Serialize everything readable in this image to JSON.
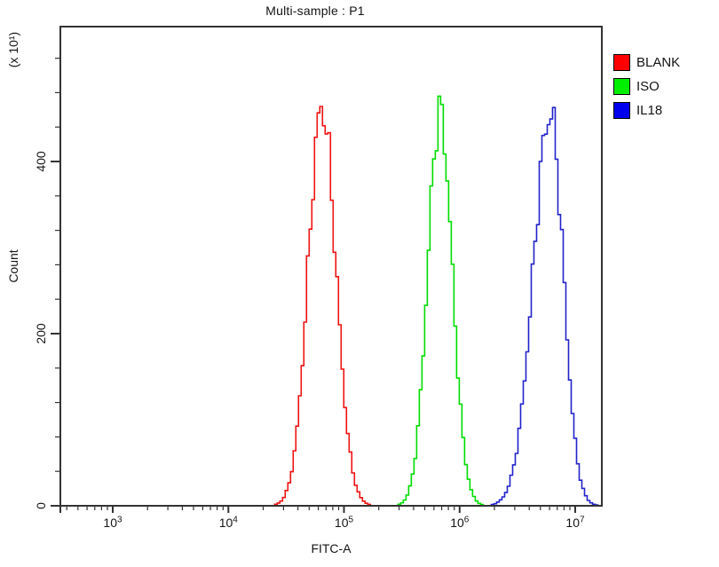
{
  "chart_data": {
    "type": "line",
    "title": "Multi-sample : P1",
    "xlabel": "FITC-A",
    "ylabel": "Count",
    "y_unit_label": "(x 10¹)",
    "x_scale": "log10",
    "x_tick_exponents": [
      3,
      4,
      5,
      6,
      7
    ],
    "x_range_log10": [
      2.55,
      7.23
    ],
    "y_ticks": [
      0,
      200,
      400
    ],
    "y_minor_step": 40,
    "ylim": [
      0,
      557
    ],
    "grid": false,
    "legend_position": "top-right",
    "axis_color": "#333333",
    "series": [
      {
        "name": "BLANK",
        "color": "#ee1111",
        "legend_color": "#ff0000",
        "peak_x": 65000,
        "peak_log10_x": 4.81,
        "peak_count": 462,
        "sigma_log10_left": 0.119,
        "sigma_log10_right": 0.121
      },
      {
        "name": "ISO",
        "color": "#00dd00",
        "legend_color": "#00ee00",
        "peak_x": 680000,
        "peak_log10_x": 5.83,
        "peak_count": 457,
        "sigma_log10_left": 0.105,
        "sigma_log10_right": 0.107
      },
      {
        "name": "IL18",
        "color": "#2222cc",
        "legend_color": "#0000ee",
        "peak_x": 6100000,
        "peak_log10_x": 6.785,
        "peak_count": 455,
        "sigma_log10_left": 0.148,
        "sigma_log10_right": 0.113
      }
    ]
  }
}
